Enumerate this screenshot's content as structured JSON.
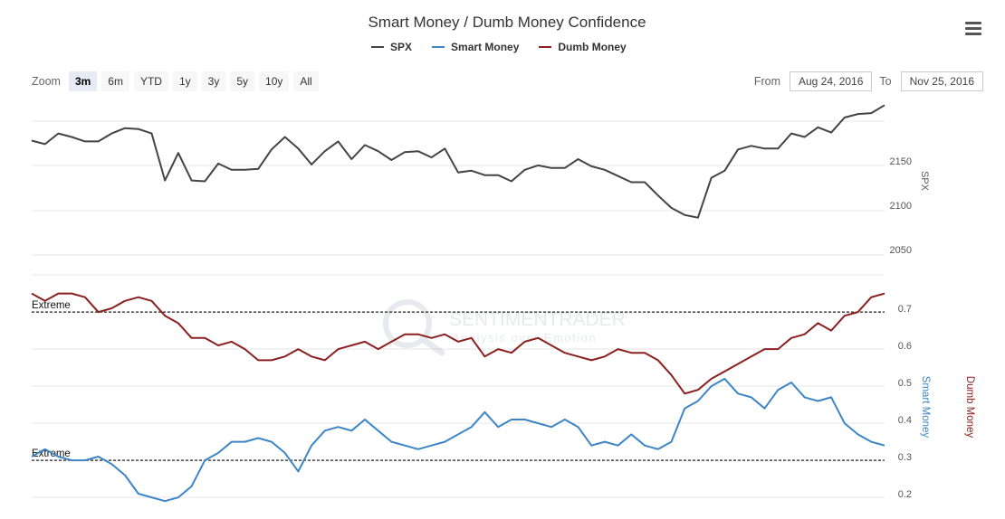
{
  "title": "Smart Money / Dumb Money Confidence",
  "legend": [
    {
      "name": "SPX",
      "color": "#434348"
    },
    {
      "name": "Smart Money",
      "color": "#3d85c6"
    },
    {
      "name": "Dumb Money",
      "color": "#8b2020"
    }
  ],
  "zoom": {
    "label": "Zoom",
    "buttons": [
      "3m",
      "6m",
      "YTD",
      "1y",
      "3y",
      "5y",
      "10y",
      "All"
    ],
    "active": "3m"
  },
  "range": {
    "from_label": "From",
    "from_value": "Aug 24, 2016",
    "to_label": "To",
    "to_value": "Nov 25, 2016"
  },
  "watermark": {
    "line1": "SENTIMENTRADER",
    "line2": "Analysis over Emotion"
  },
  "chart_data": [
    {
      "type": "line",
      "ylabel": "SPX",
      "ylim": [
        2020,
        2230
      ],
      "yticks": [
        2050,
        2100,
        2150
      ],
      "grid": true,
      "series": [
        {
          "name": "SPX",
          "color": "#434348",
          "values": [
            2173,
            2169,
            2181,
            2177,
            2172,
            2172,
            2181,
            2187,
            2186,
            2181,
            2128,
            2159,
            2128,
            2127,
            2147,
            2140,
            2140,
            2141,
            2163,
            2177,
            2164,
            2146,
            2161,
            2172,
            2152,
            2168,
            2161,
            2151,
            2160,
            2161,
            2154,
            2164,
            2137,
            2139,
            2134,
            2134,
            2127,
            2140,
            2145,
            2142,
            2142,
            2152,
            2144,
            2140,
            2133,
            2126,
            2126,
            2111,
            2097,
            2089,
            2086,
            2131,
            2139,
            2163,
            2167,
            2164,
            2164,
            2181,
            2177,
            2188,
            2182,
            2199,
            2203,
            2204,
            2213
          ]
        }
      ]
    },
    {
      "type": "line",
      "ylabel": "Smart Money",
      "ylabel2": "Dumb Money",
      "ylim": [
        0.18,
        0.78
      ],
      "yticks": [
        0.2,
        0.3,
        0.4,
        0.5,
        0.6,
        0.7
      ],
      "grid": true,
      "annotations": [
        {
          "text": "Extreme",
          "y": 0.69
        },
        {
          "text": "Extreme",
          "y": 0.29
        }
      ],
      "series": [
        {
          "name": "Dumb Money",
          "color": "#8b2020",
          "values": [
            0.74,
            0.72,
            0.74,
            0.74,
            0.73,
            0.69,
            0.7,
            0.72,
            0.73,
            0.72,
            0.68,
            0.66,
            0.62,
            0.62,
            0.6,
            0.61,
            0.59,
            0.56,
            0.56,
            0.57,
            0.59,
            0.57,
            0.56,
            0.59,
            0.6,
            0.61,
            0.59,
            0.61,
            0.63,
            0.63,
            0.62,
            0.63,
            0.61,
            0.62,
            0.57,
            0.59,
            0.58,
            0.61,
            0.62,
            0.6,
            0.58,
            0.57,
            0.56,
            0.57,
            0.59,
            0.58,
            0.58,
            0.56,
            0.52,
            0.47,
            0.48,
            0.51,
            0.53,
            0.55,
            0.57,
            0.59,
            0.59,
            0.62,
            0.63,
            0.66,
            0.64,
            0.68,
            0.69,
            0.73,
            0.74
          ]
        },
        {
          "name": "Smart Money",
          "color": "#3d85c6",
          "values": [
            0.3,
            0.32,
            0.3,
            0.29,
            0.29,
            0.3,
            0.28,
            0.25,
            0.2,
            0.19,
            0.18,
            0.19,
            0.22,
            0.29,
            0.31,
            0.34,
            0.34,
            0.35,
            0.34,
            0.31,
            0.26,
            0.33,
            0.37,
            0.38,
            0.37,
            0.4,
            0.37,
            0.34,
            0.33,
            0.32,
            0.33,
            0.34,
            0.36,
            0.38,
            0.42,
            0.38,
            0.4,
            0.4,
            0.39,
            0.38,
            0.4,
            0.38,
            0.33,
            0.34,
            0.33,
            0.36,
            0.33,
            0.32,
            0.34,
            0.43,
            0.45,
            0.49,
            0.51,
            0.47,
            0.46,
            0.43,
            0.48,
            0.5,
            0.46,
            0.45,
            0.46,
            0.39,
            0.36,
            0.34,
            0.33
          ]
        }
      ]
    }
  ]
}
